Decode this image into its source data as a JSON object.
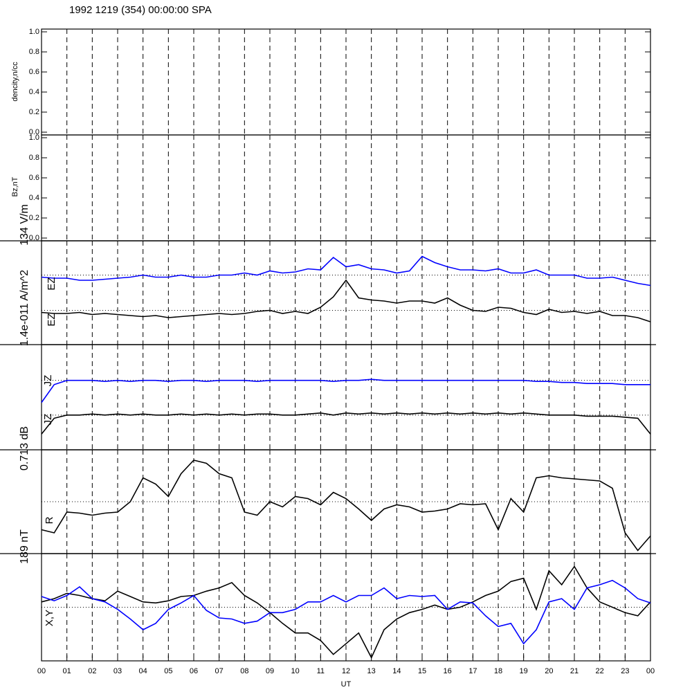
{
  "title": "1992 1219 (354) 00:00:00 SPA",
  "xlabel": "UT",
  "xlim": [
    0,
    24
  ],
  "xticks": [
    {
      "value": 0,
      "label": "00"
    },
    {
      "value": 1,
      "label": "01"
    },
    {
      "value": 2,
      "label": "02"
    },
    {
      "value": 3,
      "label": "03"
    },
    {
      "value": 4,
      "label": "04"
    },
    {
      "value": 5,
      "label": "05"
    },
    {
      "value": 6,
      "label": "06"
    },
    {
      "value": 7,
      "label": "07"
    },
    {
      "value": 8,
      "label": "08"
    },
    {
      "value": 9,
      "label": "09"
    },
    {
      "value": 10,
      "label": "10"
    },
    {
      "value": 11,
      "label": "11"
    },
    {
      "value": 12,
      "label": "12"
    },
    {
      "value": 13,
      "label": "13"
    },
    {
      "value": 14,
      "label": "14"
    },
    {
      "value": 15,
      "label": "15"
    },
    {
      "value": 16,
      "label": "16"
    },
    {
      "value": 17,
      "label": "17"
    },
    {
      "value": 18,
      "label": "18"
    },
    {
      "value": 19,
      "label": "19"
    },
    {
      "value": 20,
      "label": "20"
    },
    {
      "value": 21,
      "label": "21"
    },
    {
      "value": 22,
      "label": "22"
    },
    {
      "value": 23,
      "label": "23"
    },
    {
      "value": 24,
      "label": "00"
    }
  ],
  "vgrid": true,
  "x": [
    0,
    0.5,
    1,
    1.5,
    2,
    2.5,
    3,
    3.5,
    4,
    4.5,
    5,
    5.5,
    6,
    6.5,
    7,
    7.5,
    8,
    8.5,
    9,
    9.5,
    10,
    10.5,
    11,
    11.5,
    12,
    12.5,
    13,
    13.5,
    14,
    14.5,
    15,
    15.5,
    16,
    16.5,
    17,
    17.5,
    18,
    18.5,
    19,
    19.5,
    20,
    20.5,
    21,
    21.5,
    22,
    22.5,
    23,
    23.5,
    24
  ],
  "chart_data": [
    {
      "type": "line",
      "ylabel": "dencity,n/cc",
      "ylim": [
        0,
        1
      ],
      "yticks": [
        {
          "value": 0,
          "label": "0.0"
        },
        {
          "value": 0.2,
          "label": "0.2"
        },
        {
          "value": 0.4,
          "label": "0.4"
        },
        {
          "value": 0.6,
          "label": "0.6"
        },
        {
          "value": 0.8,
          "label": "0.8"
        },
        {
          "value": 1,
          "label": "1.0"
        }
      ],
      "series": []
    },
    {
      "type": "line",
      "ylabel": "Bz,nT",
      "ylim": [
        0,
        1
      ],
      "yticks": [
        {
          "value": 0,
          "label": "0.0"
        },
        {
          "value": 0.2,
          "label": "0.2"
        },
        {
          "value": 0.4,
          "label": "0.4"
        },
        {
          "value": 0.6,
          "label": "0.6"
        },
        {
          "value": 0.8,
          "label": "0.8"
        },
        {
          "value": 1,
          "label": "1.0"
        }
      ],
      "series": []
    },
    {
      "type": "line",
      "ylabel": "134 V/m",
      "ylim": [
        0,
        1
      ],
      "hlines": [
        0.67,
        0.33
      ],
      "series": [
        {
          "name": "EZ",
          "color": "#0000ff",
          "values": [
            0.65,
            0.64,
            0.64,
            0.62,
            0.62,
            0.63,
            0.64,
            0.65,
            0.67,
            0.65,
            0.65,
            0.67,
            0.65,
            0.65,
            0.67,
            0.67,
            0.69,
            0.67,
            0.71,
            0.69,
            0.7,
            0.73,
            0.72,
            0.84,
            0.75,
            0.77,
            0.73,
            0.72,
            0.69,
            0.71,
            0.85,
            0.79,
            0.75,
            0.72,
            0.72,
            0.71,
            0.73,
            0.69,
            0.69,
            0.72,
            0.67,
            0.67,
            0.67,
            0.64,
            0.64,
            0.65,
            0.62,
            0.59,
            0.57
          ]
        },
        {
          "name": "EZ",
          "color": "#000000",
          "values": [
            0.31,
            0.3,
            0.3,
            0.31,
            0.29,
            0.3,
            0.29,
            0.28,
            0.27,
            0.28,
            0.26,
            0.27,
            0.28,
            0.29,
            0.3,
            0.29,
            0.3,
            0.32,
            0.33,
            0.3,
            0.32,
            0.3,
            0.36,
            0.46,
            0.62,
            0.45,
            0.43,
            0.42,
            0.4,
            0.42,
            0.42,
            0.4,
            0.45,
            0.38,
            0.33,
            0.32,
            0.36,
            0.35,
            0.31,
            0.29,
            0.34,
            0.31,
            0.32,
            0.3,
            0.32,
            0.28,
            0.28,
            0.26,
            0.22
          ]
        }
      ]
    },
    {
      "type": "line",
      "ylabel": "1.4e-011 A/m^2",
      "ylim": [
        0,
        1
      ],
      "hlines": [
        0.66,
        0.33
      ],
      "series": [
        {
          "name": "JZ",
          "color": "#0000ff",
          "values": [
            0.45,
            0.62,
            0.66,
            0.66,
            0.66,
            0.65,
            0.66,
            0.65,
            0.66,
            0.66,
            0.65,
            0.66,
            0.66,
            0.65,
            0.66,
            0.66,
            0.66,
            0.65,
            0.66,
            0.66,
            0.66,
            0.66,
            0.66,
            0.65,
            0.66,
            0.66,
            0.67,
            0.66,
            0.66,
            0.66,
            0.66,
            0.66,
            0.66,
            0.66,
            0.66,
            0.66,
            0.66,
            0.66,
            0.66,
            0.65,
            0.65,
            0.64,
            0.64,
            0.63,
            0.63,
            0.63,
            0.62,
            0.62,
            0.62
          ]
        },
        {
          "name": "JZ",
          "color": "#000000",
          "values": [
            0.15,
            0.3,
            0.33,
            0.33,
            0.34,
            0.33,
            0.34,
            0.33,
            0.34,
            0.33,
            0.33,
            0.34,
            0.33,
            0.34,
            0.33,
            0.34,
            0.33,
            0.34,
            0.34,
            0.33,
            0.33,
            0.34,
            0.35,
            0.33,
            0.35,
            0.34,
            0.35,
            0.34,
            0.35,
            0.34,
            0.35,
            0.34,
            0.35,
            0.34,
            0.35,
            0.34,
            0.35,
            0.34,
            0.35,
            0.34,
            0.33,
            0.33,
            0.33,
            0.32,
            0.32,
            0.32,
            0.31,
            0.3,
            0.15
          ]
        }
      ]
    },
    {
      "type": "line",
      "ylabel": "0.713 dB",
      "ylim": [
        0,
        1
      ],
      "hlines": [
        0.5
      ],
      "series": [
        {
          "name": "R",
          "color": "#000000",
          "values": [
            0.23,
            0.2,
            0.4,
            0.39,
            0.37,
            0.39,
            0.4,
            0.5,
            0.73,
            0.67,
            0.55,
            0.77,
            0.9,
            0.87,
            0.77,
            0.73,
            0.4,
            0.37,
            0.5,
            0.45,
            0.55,
            0.53,
            0.47,
            0.59,
            0.53,
            0.43,
            0.32,
            0.43,
            0.47,
            0.45,
            0.4,
            0.41,
            0.43,
            0.48,
            0.47,
            0.48,
            0.23,
            0.53,
            0.4,
            0.73,
            0.75,
            0.73,
            0.72,
            0.71,
            0.7,
            0.63,
            0.2,
            0.03,
            0.17
          ]
        }
      ]
    },
    {
      "type": "line",
      "ylabel": "189 nT",
      "label": "X,Y",
      "ylim": [
        0,
        1
      ],
      "hlines": [
        0.5
      ],
      "series": [
        {
          "color": "#000000",
          "values": [
            0.55,
            0.58,
            0.63,
            0.61,
            0.58,
            0.56,
            0.65,
            0.6,
            0.55,
            0.54,
            0.56,
            0.6,
            0.61,
            0.65,
            0.68,
            0.73,
            0.61,
            0.54,
            0.45,
            0.35,
            0.26,
            0.26,
            0.19,
            0.06,
            0.16,
            0.26,
            0.03,
            0.29,
            0.39,
            0.45,
            0.48,
            0.52,
            0.48,
            0.5,
            0.55,
            0.61,
            0.65,
            0.74,
            0.77,
            0.48,
            0.84,
            0.71,
            0.88,
            0.68,
            0.55,
            0.5,
            0.45,
            0.42,
            0.55
          ]
        },
        {
          "color": "#0000ff",
          "values": [
            0.6,
            0.56,
            0.61,
            0.69,
            0.58,
            0.55,
            0.48,
            0.39,
            0.29,
            0.35,
            0.48,
            0.54,
            0.61,
            0.47,
            0.4,
            0.39,
            0.35,
            0.37,
            0.45,
            0.45,
            0.48,
            0.55,
            0.55,
            0.61,
            0.55,
            0.61,
            0.61,
            0.68,
            0.58,
            0.61,
            0.6,
            0.61,
            0.48,
            0.55,
            0.54,
            0.42,
            0.32,
            0.35,
            0.16,
            0.29,
            0.55,
            0.58,
            0.48,
            0.68,
            0.71,
            0.75,
            0.68,
            0.58,
            0.54
          ]
        }
      ]
    }
  ]
}
